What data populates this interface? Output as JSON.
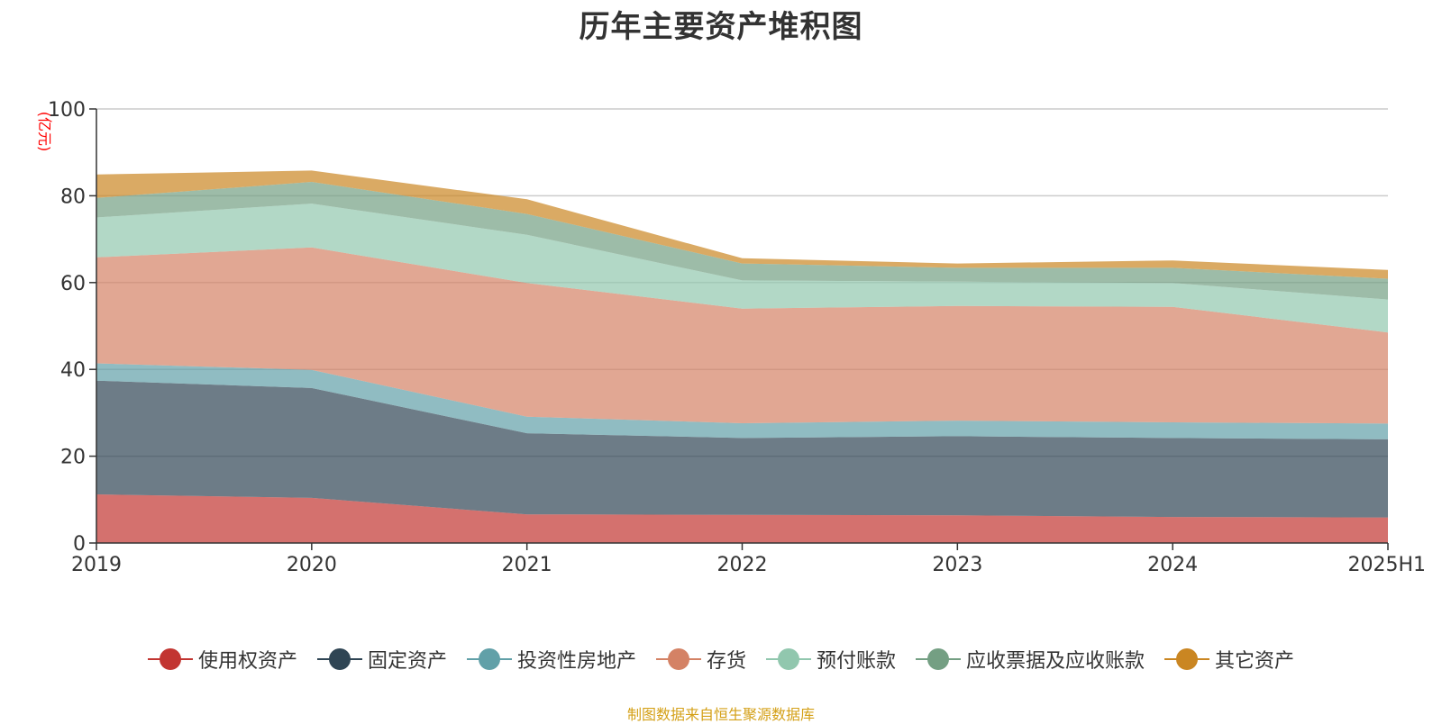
{
  "chart_data": {
    "type": "area",
    "stacked": true,
    "title": "历年主要资产堆积图",
    "unit_label": "(亿元)",
    "categories": [
      "2019",
      "2020",
      "2021",
      "2022",
      "2023",
      "2024",
      "2025H1"
    ],
    "ylim": [
      0,
      100
    ],
    "yticks": [
      0,
      20,
      40,
      60,
      80,
      100
    ],
    "grid": true,
    "legend_position": "bottom",
    "series": [
      {
        "name": "使用权资产",
        "color": "#C23531",
        "values": [
          11.2,
          10.4,
          6.6,
          6.5,
          6.4,
          6.0,
          5.9
        ]
      },
      {
        "name": "固定资产",
        "color": "#2F4554",
        "values": [
          26.2,
          25.3,
          18.7,
          17.7,
          18.2,
          18.2,
          18.0
        ]
      },
      {
        "name": "投资性房地产",
        "color": "#61A0A8",
        "values": [
          4.0,
          4.2,
          3.8,
          3.4,
          3.6,
          3.6,
          3.6
        ]
      },
      {
        "name": "存货",
        "color": "#D48265",
        "values": [
          24.4,
          28.2,
          30.8,
          26.4,
          26.4,
          26.6,
          21.0
        ]
      },
      {
        "name": "预付账款",
        "color": "#91C7AE",
        "values": [
          9.2,
          10.1,
          11.1,
          6.5,
          5.6,
          5.5,
          7.6
        ]
      },
      {
        "name": "应收票据及应收账款",
        "color": "#749F83",
        "values": [
          4.5,
          5.0,
          4.8,
          3.9,
          3.2,
          3.5,
          4.8
        ]
      },
      {
        "name": "其它资产",
        "color": "#CA8622",
        "values": [
          5.4,
          2.6,
          3.4,
          1.2,
          1.0,
          1.7,
          2.0
        ]
      }
    ]
  },
  "source": "制图数据来自恒生聚源数据库"
}
